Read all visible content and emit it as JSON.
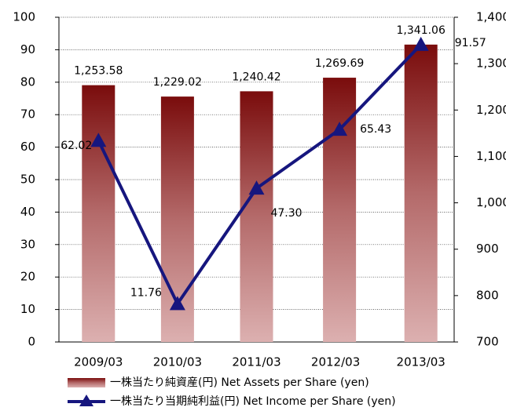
{
  "chart_data": {
    "type": "bar_line",
    "categories": [
      "2009/03",
      "2010/03",
      "2011/03",
      "2012/03",
      "2013/03"
    ],
    "series": [
      {
        "name": "一株当たり純資産(円) Net Assets per Share (yen)",
        "type": "bar",
        "axis": "y2",
        "color": "#7a0c0c",
        "values": [
          1253.58,
          1229.02,
          1240.42,
          1269.69,
          1341.06
        ],
        "value_labels": [
          "1,253.58",
          "1,229.02",
          "1,240.42",
          "1,269.69",
          "1,341.06"
        ]
      },
      {
        "name": "一株当たり当期純利益(円) Net Income per Share (yen)",
        "type": "line",
        "axis": "y",
        "color": "#16167e",
        "values": [
          62.02,
          11.76,
          47.3,
          65.43,
          91.57
        ],
        "value_labels": [
          "62.02",
          "11.76",
          "47.30",
          "65.43",
          "91.57"
        ]
      }
    ],
    "ylim": [
      0,
      100
    ],
    "yticks": [
      0,
      10,
      20,
      30,
      40,
      50,
      60,
      70,
      80,
      90,
      100
    ],
    "y2lim": [
      700,
      1400
    ],
    "y2ticks": [
      700,
      800,
      900,
      {
        "value": 1000,
        "label": "1,000"
      },
      {
        "value": 1100,
        "label": "1,100"
      },
      {
        "value": 1200,
        "label": "1,200"
      },
      {
        "value": 1300,
        "label": "1,300"
      },
      {
        "value": 1400,
        "label": "1,400"
      }
    ],
    "grid": true,
    "legend": "bottom"
  }
}
